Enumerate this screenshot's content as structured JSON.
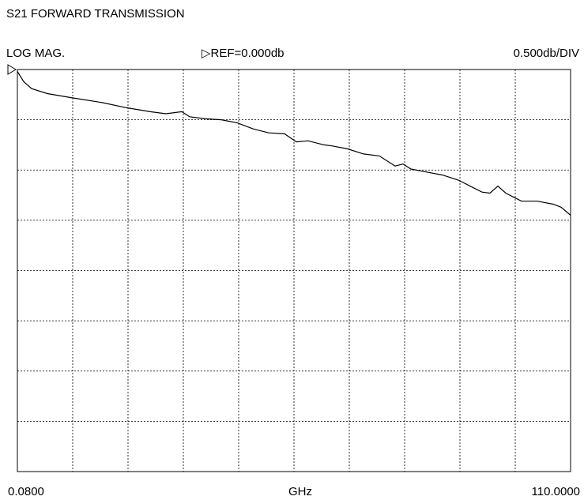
{
  "chart_data": {
    "type": "line",
    "title": "S21 FORWARD TRANSMISSION",
    "format_label": "LOG MAG.",
    "reference_label": "▷REF=0.000db",
    "scale_label": "0.500db/DIV",
    "x_label": "GHz",
    "x": [
      0.08,
      1.34,
      2.91,
      6.05,
      10.76,
      17.04,
      21.75,
      26.46,
      29.6,
      32.74,
      34.31,
      37.45,
      40.6,
      43.74,
      46.88,
      50.02,
      53.16,
      55.51,
      57.87,
      61.01,
      62.58,
      65.72,
      68.86,
      72.0,
      75.14,
      76.71,
      78.28,
      81.42,
      84.56,
      87.7,
      90.84,
      92.41,
      93.98,
      95.55,
      97.12,
      100.26,
      103.4,
      106.54,
      108.11,
      110.0
    ],
    "values": [
      -0.02,
      -0.12,
      -0.19,
      -0.24,
      -0.28,
      -0.33,
      -0.38,
      -0.42,
      -0.44,
      -0.42,
      -0.47,
      -0.49,
      -0.5,
      -0.53,
      -0.59,
      -0.63,
      -0.64,
      -0.72,
      -0.71,
      -0.75,
      -0.76,
      -0.79,
      -0.84,
      -0.86,
      -0.96,
      -0.94,
      -0.99,
      -1.02,
      -1.05,
      -1.1,
      -1.18,
      -1.22,
      -1.23,
      -1.16,
      -1.23,
      -1.31,
      -1.31,
      -1.34,
      -1.37,
      -1.45
    ],
    "color": "#000000",
    "xlim": [
      0.08,
      110.0
    ],
    "ylim": [
      -4,
      0
    ],
    "xticks": [
      {
        "value": 0.08,
        "label": "0.0800"
      },
      {
        "value": 110.0,
        "label": "110.0000"
      }
    ],
    "grid": true
  }
}
